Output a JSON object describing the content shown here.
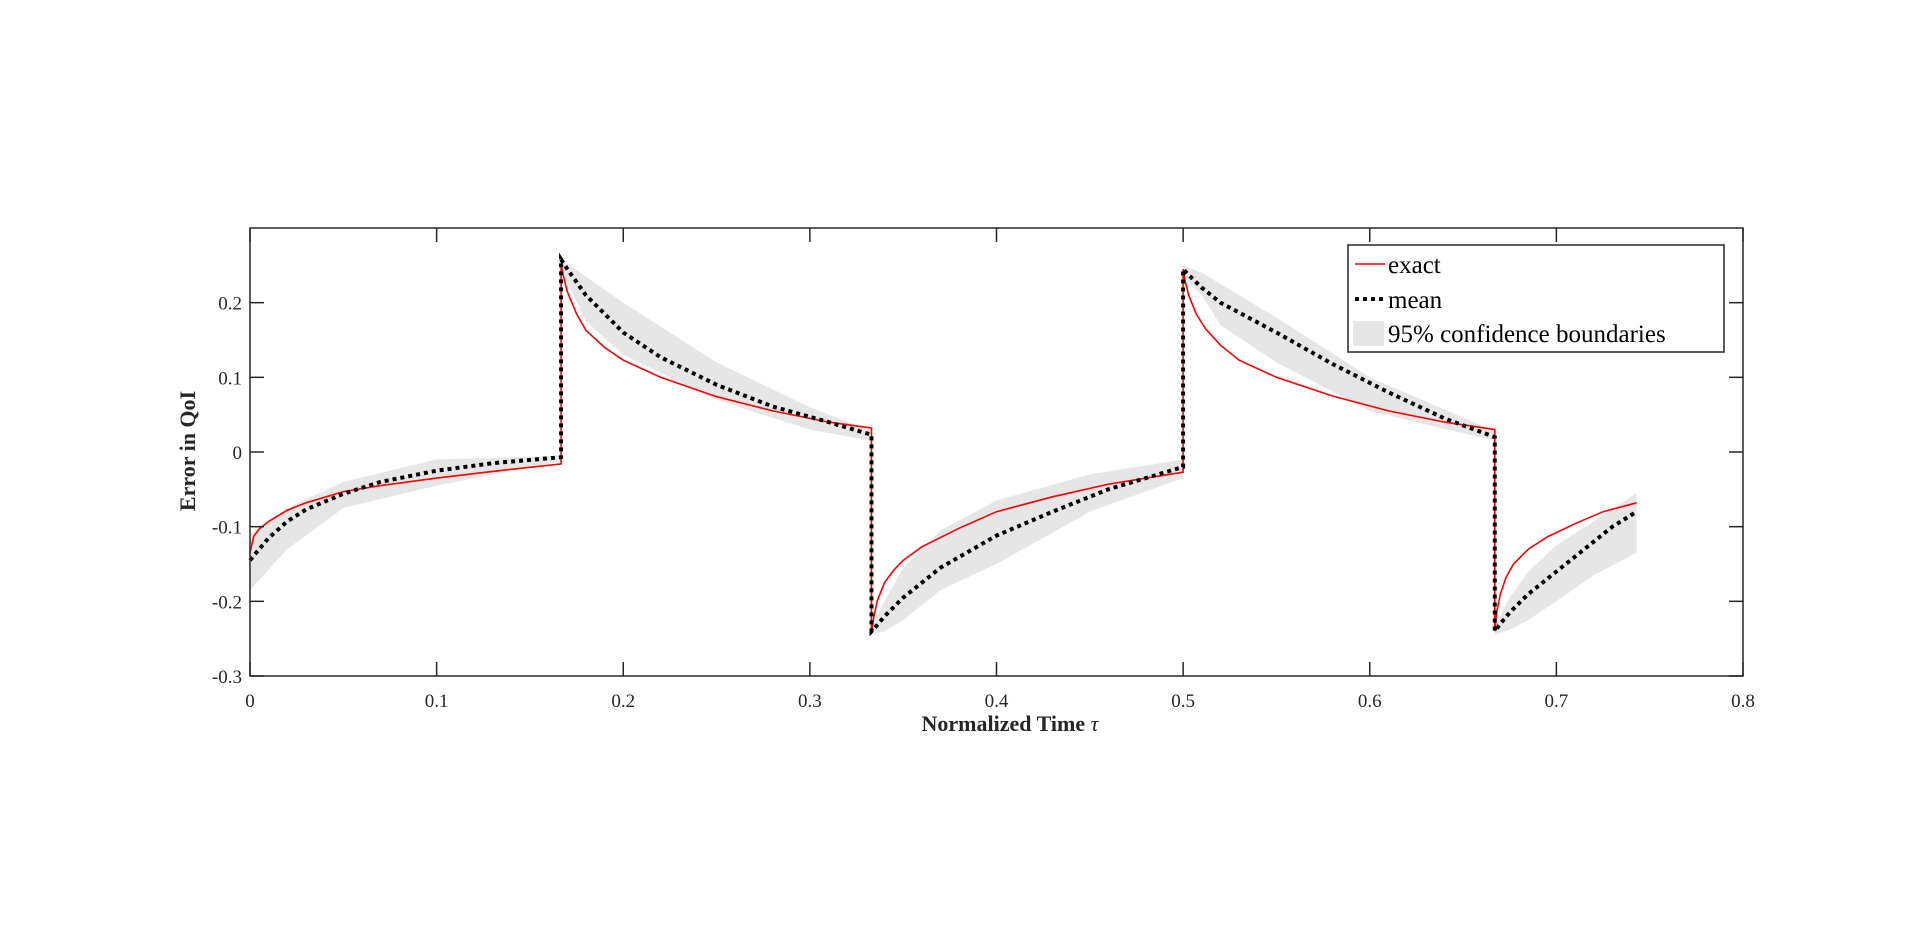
{
  "chart_data": {
    "type": "line",
    "title": "",
    "xlabel": "Normalized Time",
    "xlabel_symbol": "τ",
    "ylabel": "Error in QoI",
    "xlim": [
      0,
      0.8
    ],
    "ylim": [
      -0.3,
      0.3
    ],
    "xticks": [
      0,
      0.1,
      0.2,
      0.3,
      0.4,
      0.5,
      0.6,
      0.7,
      0.8
    ],
    "xtick_labels": [
      "0",
      "0.1",
      "0.2",
      "0.3",
      "0.4",
      "0.5",
      "0.6",
      "0.7",
      "0.8"
    ],
    "yticks": [
      -0.3,
      -0.2,
      -0.1,
      0,
      0.1,
      0.2
    ],
    "ytick_labels": [
      "-0.3",
      "-0.2",
      "-0.1",
      "0",
      "0.1",
      "0.2"
    ],
    "grid": false,
    "legend_position": "top-right",
    "series": [
      {
        "name": "exact",
        "style": "solid",
        "color": "#ff0000",
        "x": [
          0,
          0.002,
          0.005,
          0.01,
          0.02,
          0.03,
          0.05,
          0.07,
          0.1,
          0.13,
          0.1667,
          0.1667,
          0.168,
          0.17,
          0.175,
          0.18,
          0.19,
          0.2,
          0.22,
          0.25,
          0.28,
          0.31,
          0.333,
          0.333,
          0.334,
          0.336,
          0.34,
          0.345,
          0.35,
          0.36,
          0.38,
          0.4,
          0.43,
          0.46,
          0.5,
          0.5,
          0.501,
          0.503,
          0.507,
          0.512,
          0.52,
          0.53,
          0.55,
          0.58,
          0.61,
          0.64,
          0.667,
          0.667,
          0.668,
          0.67,
          0.673,
          0.677,
          0.685,
          0.695,
          0.71,
          0.725,
          0.743
        ],
        "y": [
          -0.135,
          -0.113,
          -0.103,
          -0.093,
          -0.078,
          -0.068,
          -0.053,
          -0.045,
          -0.035,
          -0.026,
          -0.016,
          0.25,
          0.235,
          0.215,
          0.185,
          0.163,
          0.14,
          0.123,
          0.1,
          0.074,
          0.055,
          0.04,
          0.032,
          -0.24,
          -0.225,
          -0.2,
          -0.175,
          -0.158,
          -0.145,
          -0.127,
          -0.102,
          -0.08,
          -0.06,
          -0.043,
          -0.027,
          0.245,
          0.23,
          0.21,
          0.185,
          0.165,
          0.143,
          0.123,
          0.1,
          0.075,
          0.055,
          0.04,
          0.03,
          -0.24,
          -0.215,
          -0.19,
          -0.168,
          -0.15,
          -0.13,
          -0.114,
          -0.096,
          -0.08,
          -0.068
        ]
      },
      {
        "name": "mean",
        "style": "dotted",
        "color": "#000000",
        "x": [
          0,
          0.005,
          0.01,
          0.02,
          0.03,
          0.05,
          0.07,
          0.1,
          0.13,
          0.1667,
          0.1667,
          0.17,
          0.18,
          0.2,
          0.22,
          0.25,
          0.28,
          0.31,
          0.333,
          0.333,
          0.336,
          0.34,
          0.35,
          0.37,
          0.4,
          0.43,
          0.46,
          0.5,
          0.5,
          0.503,
          0.51,
          0.52,
          0.55,
          0.58,
          0.61,
          0.64,
          0.667,
          0.667,
          0.67,
          0.675,
          0.685,
          0.7,
          0.715,
          0.73,
          0.743
        ],
        "y": [
          -0.145,
          -0.13,
          -0.115,
          -0.093,
          -0.077,
          -0.056,
          -0.04,
          -0.025,
          -0.015,
          -0.007,
          0.258,
          0.245,
          0.21,
          0.16,
          0.127,
          0.09,
          0.061,
          0.04,
          0.023,
          -0.24,
          -0.232,
          -0.22,
          -0.195,
          -0.155,
          -0.112,
          -0.08,
          -0.05,
          -0.02,
          0.245,
          0.237,
          0.22,
          0.2,
          0.16,
          0.118,
          0.08,
          0.045,
          0.02,
          -0.24,
          -0.23,
          -0.215,
          -0.19,
          -0.16,
          -0.13,
          -0.1,
          -0.08
        ]
      },
      {
        "name": "95% confidence boundaries",
        "style": "band",
        "color": "#e6e6e6",
        "x": [
          0,
          0.02,
          0.05,
          0.1,
          0.1667,
          0.1667,
          0.18,
          0.2,
          0.25,
          0.3,
          0.333,
          0.333,
          0.34,
          0.35,
          0.37,
          0.4,
          0.45,
          0.5,
          0.5,
          0.51,
          0.52,
          0.55,
          0.6,
          0.667,
          0.667,
          0.675,
          0.685,
          0.7,
          0.72,
          0.743
        ],
        "upper": [
          -0.11,
          -0.075,
          -0.04,
          -0.01,
          -0.005,
          0.258,
          0.235,
          0.2,
          0.12,
          0.06,
          0.028,
          -0.233,
          -0.2,
          -0.155,
          -0.105,
          -0.065,
          -0.03,
          -0.01,
          0.25,
          0.24,
          0.225,
          0.18,
          0.1,
          0.028,
          -0.233,
          -0.195,
          -0.16,
          -0.125,
          -0.093,
          -0.055
        ],
        "lower": [
          -0.185,
          -0.13,
          -0.075,
          -0.045,
          -0.012,
          0.245,
          0.175,
          0.13,
          0.07,
          0.03,
          0.015,
          -0.245,
          -0.24,
          -0.225,
          -0.185,
          -0.15,
          -0.08,
          -0.035,
          0.235,
          0.21,
          0.17,
          0.12,
          0.055,
          0.015,
          -0.245,
          -0.238,
          -0.225,
          -0.2,
          -0.165,
          -0.135
        ]
      }
    ],
    "legend_entries": [
      "exact",
      "mean",
      "95% confidence boundaries"
    ]
  }
}
